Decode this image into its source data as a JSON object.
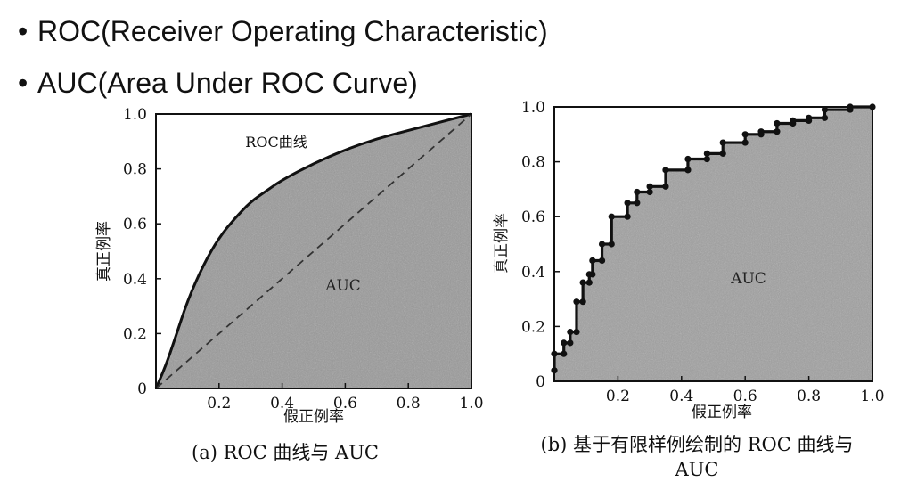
{
  "bullets": [
    {
      "text": "ROC(Receiver Operating Characteristic)"
    },
    {
      "text": "AUC(Area Under ROC Curve)"
    }
  ],
  "chart_data": [
    {
      "type": "area",
      "caption": "(a) ROC 曲线与 AUC",
      "xlabel": "假正例率",
      "ylabel": "真正例率",
      "xlim": [
        0,
        1.0
      ],
      "ylim": [
        0,
        1.0
      ],
      "xticks": [
        "0.2",
        "0.4",
        "0.6",
        "0.8",
        "1.0"
      ],
      "yticks": [
        "0",
        "0.2",
        "0.4",
        "0.6",
        "0.8",
        "1.0"
      ],
      "curve_label": "ROC曲线",
      "area_label": "AUC",
      "diagonal": "dashed",
      "series": [
        {
          "name": "ROC曲线",
          "x": [
            0,
            0.03,
            0.06,
            0.1,
            0.15,
            0.2,
            0.25,
            0.3,
            0.35,
            0.4,
            0.5,
            0.6,
            0.7,
            0.8,
            0.9,
            1.0
          ],
          "y": [
            0,
            0.08,
            0.18,
            0.32,
            0.45,
            0.55,
            0.62,
            0.68,
            0.72,
            0.76,
            0.82,
            0.87,
            0.91,
            0.94,
            0.97,
            1.0
          ]
        }
      ],
      "colors": {
        "fill": "#9a9a9a",
        "line": "#111111"
      }
    },
    {
      "type": "area",
      "caption": "(b) 基于有限样例绘制的 ROC 曲线与 AUC",
      "xlabel": "假正例率",
      "ylabel": "真正例率",
      "xlim": [
        0,
        1.0
      ],
      "ylim": [
        0,
        1.0
      ],
      "xticks": [
        "0.2",
        "0.4",
        "0.6",
        "0.8",
        "1.0"
      ],
      "yticks": [
        "0",
        "0.2",
        "0.4",
        "0.6",
        "0.8",
        "1.0"
      ],
      "area_label": "AUC",
      "series": [
        {
          "name": "",
          "points": [
            [
              0,
              0.04
            ],
            [
              0,
              0.1
            ],
            [
              0.03,
              0.1
            ],
            [
              0.03,
              0.14
            ],
            [
              0.05,
              0.14
            ],
            [
              0.05,
              0.18
            ],
            [
              0.07,
              0.18
            ],
            [
              0.07,
              0.29
            ],
            [
              0.09,
              0.29
            ],
            [
              0.09,
              0.36
            ],
            [
              0.11,
              0.36
            ],
            [
              0.11,
              0.39
            ],
            [
              0.12,
              0.39
            ],
            [
              0.12,
              0.44
            ],
            [
              0.15,
              0.44
            ],
            [
              0.15,
              0.5
            ],
            [
              0.18,
              0.5
            ],
            [
              0.18,
              0.6
            ],
            [
              0.23,
              0.6
            ],
            [
              0.23,
              0.65
            ],
            [
              0.26,
              0.65
            ],
            [
              0.26,
              0.69
            ],
            [
              0.3,
              0.69
            ],
            [
              0.3,
              0.71
            ],
            [
              0.35,
              0.71
            ],
            [
              0.35,
              0.77
            ],
            [
              0.42,
              0.77
            ],
            [
              0.42,
              0.81
            ],
            [
              0.48,
              0.81
            ],
            [
              0.48,
              0.83
            ],
            [
              0.53,
              0.83
            ],
            [
              0.53,
              0.87
            ],
            [
              0.6,
              0.87
            ],
            [
              0.6,
              0.9
            ],
            [
              0.65,
              0.9
            ],
            [
              0.65,
              0.91
            ],
            [
              0.7,
              0.91
            ],
            [
              0.7,
              0.94
            ],
            [
              0.75,
              0.94
            ],
            [
              0.75,
              0.95
            ],
            [
              0.8,
              0.95
            ],
            [
              0.8,
              0.96
            ],
            [
              0.85,
              0.96
            ],
            [
              0.85,
              0.99
            ],
            [
              0.93,
              0.99
            ],
            [
              0.93,
              1.0
            ],
            [
              1.0,
              1.0
            ]
          ]
        }
      ],
      "colors": {
        "fill": "#a0a0a0",
        "line": "#111111"
      }
    }
  ]
}
